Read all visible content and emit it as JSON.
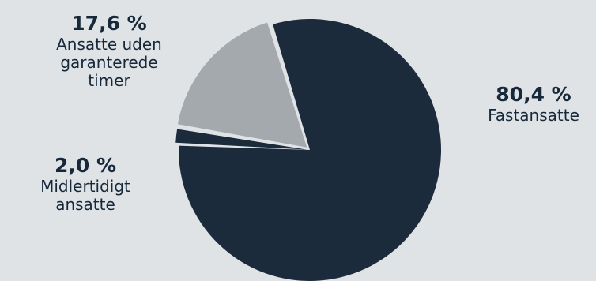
{
  "chart_data": {
    "type": "pie",
    "slices": [
      {
        "label": "Fastansatte",
        "value": 80.4,
        "value_label": "80,4 %",
        "color": "#1c2b3b"
      },
      {
        "label": "Midlertidigt\nansatte",
        "value": 2.0,
        "value_label": "2,0 %",
        "color": "#1c2b3b"
      },
      {
        "label": "Ansatte uden\ngaranterede\ntimer",
        "value": 17.6,
        "value_label": "17,6 %",
        "color": "#a4a9ad"
      }
    ],
    "title": "",
    "legend": "none"
  }
}
